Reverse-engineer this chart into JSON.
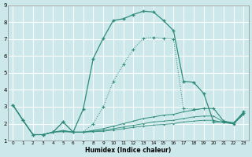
{
  "xlabel": "Humidex (Indice chaleur)",
  "bg_color": "#cce8ea",
  "grid_color": "#ffffff",
  "line_color": "#2e8b7a",
  "xlim": [
    -0.5,
    23.5
  ],
  "ylim": [
    1,
    9
  ],
  "xticks": [
    0,
    1,
    2,
    3,
    4,
    5,
    6,
    7,
    8,
    9,
    10,
    11,
    12,
    13,
    14,
    15,
    16,
    17,
    18,
    19,
    20,
    21,
    22,
    23
  ],
  "yticks": [
    1,
    2,
    3,
    4,
    5,
    6,
    7,
    8,
    9
  ],
  "curve_main_x": [
    0,
    1,
    2,
    3,
    4,
    5,
    6,
    7,
    8,
    9,
    10,
    11,
    12,
    13,
    14,
    15,
    16,
    17,
    18,
    19,
    20,
    21,
    22,
    23
  ],
  "curve_main_y": [
    3.1,
    2.2,
    1.35,
    1.35,
    1.5,
    2.1,
    1.5,
    2.85,
    5.85,
    7.05,
    8.1,
    8.2,
    8.45,
    8.65,
    8.6,
    8.1,
    7.5,
    4.5,
    4.45,
    3.8,
    2.1,
    2.1,
    2.0,
    2.7
  ],
  "curve_dotted_x": [
    0,
    1,
    2,
    3,
    4,
    5,
    6,
    7,
    8,
    9,
    10,
    11,
    12,
    13,
    14,
    15,
    16,
    17,
    18,
    19,
    20,
    21,
    22,
    23
  ],
  "curve_dotted_y": [
    3.1,
    2.2,
    1.35,
    1.35,
    1.5,
    2.1,
    1.5,
    1.5,
    2.0,
    3.0,
    4.5,
    5.5,
    6.4,
    7.05,
    7.1,
    7.05,
    7.0,
    2.9,
    2.85,
    2.9,
    2.9,
    2.15,
    2.05,
    2.65
  ],
  "curve_line2_x": [
    0,
    1,
    2,
    3,
    4,
    5,
    6,
    7,
    8,
    9,
    10,
    11,
    12,
    13,
    14,
    15,
    16,
    17,
    18,
    19,
    20,
    21,
    22,
    23
  ],
  "curve_line2_y": [
    3.1,
    2.2,
    1.35,
    1.35,
    1.5,
    1.6,
    1.5,
    1.5,
    1.6,
    1.7,
    1.85,
    2.0,
    2.15,
    2.3,
    2.4,
    2.5,
    2.55,
    2.7,
    2.8,
    2.9,
    2.9,
    2.15,
    2.05,
    2.65
  ],
  "curve_line3_x": [
    0,
    1,
    2,
    3,
    4,
    5,
    6,
    7,
    8,
    9,
    10,
    11,
    12,
    13,
    14,
    15,
    16,
    17,
    18,
    19,
    20,
    21,
    22,
    23
  ],
  "curve_line3_y": [
    3.1,
    2.2,
    1.35,
    1.35,
    1.5,
    1.55,
    1.5,
    1.5,
    1.55,
    1.6,
    1.7,
    1.8,
    1.9,
    2.0,
    2.1,
    2.15,
    2.2,
    2.3,
    2.4,
    2.45,
    2.45,
    2.1,
    2.0,
    2.6
  ],
  "curve_line4_x": [
    0,
    1,
    2,
    3,
    4,
    5,
    6,
    7,
    8,
    9,
    10,
    11,
    12,
    13,
    14,
    15,
    16,
    17,
    18,
    19,
    20,
    21,
    22,
    23
  ],
  "curve_line4_y": [
    3.1,
    2.2,
    1.35,
    1.35,
    1.5,
    1.52,
    1.5,
    1.5,
    1.52,
    1.55,
    1.62,
    1.7,
    1.78,
    1.85,
    1.92,
    1.95,
    2.0,
    2.1,
    2.15,
    2.2,
    2.2,
    2.05,
    2.0,
    2.55
  ]
}
